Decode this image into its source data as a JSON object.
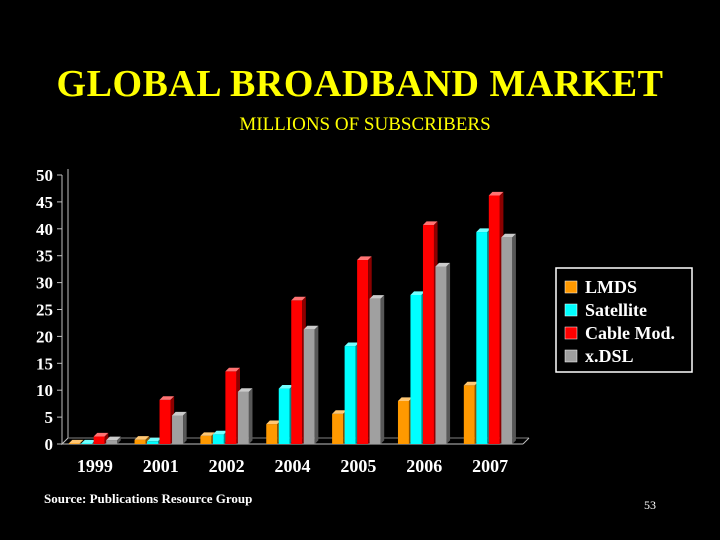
{
  "slide": {
    "title": "GLOBAL BROADBAND MARKET",
    "subtitle": "MILLIONS OF SUBSCRIBERS",
    "source": "Source: Publications Resource Group",
    "page_number": "53"
  },
  "chart_data": {
    "type": "bar",
    "style": "3d-clustered",
    "categories": [
      "1999",
      "2001",
      "2002",
      "2004",
      "2005",
      "2006",
      "2007"
    ],
    "ylim": [
      0,
      50
    ],
    "yticks": [
      "0",
      "5",
      "10",
      "15",
      "20",
      "25",
      "30",
      "35",
      "40",
      "45",
      "50"
    ],
    "grid": false,
    "legend_position": "right",
    "series": [
      {
        "name": "LMDS",
        "color": "#FF9900",
        "values": [
          0.1,
          0.8,
          1.5,
          3.7,
          5.6,
          8.0,
          10.9
        ]
      },
      {
        "name": "Satellite",
        "color": "#00FFFF",
        "values": [
          0.1,
          0.5,
          1.8,
          10.3,
          18.2,
          27.7,
          39.4
        ]
      },
      {
        "name": "Cable Mod.",
        "color": "#FF0000",
        "values": [
          1.4,
          8.2,
          13.5,
          26.7,
          34.2,
          40.7,
          46.2
        ]
      },
      {
        "name": "x.DSL",
        "color": "#A0A0A0",
        "values": [
          0.7,
          5.3,
          9.7,
          21.3,
          27.0,
          33.0,
          38.4
        ]
      }
    ]
  }
}
